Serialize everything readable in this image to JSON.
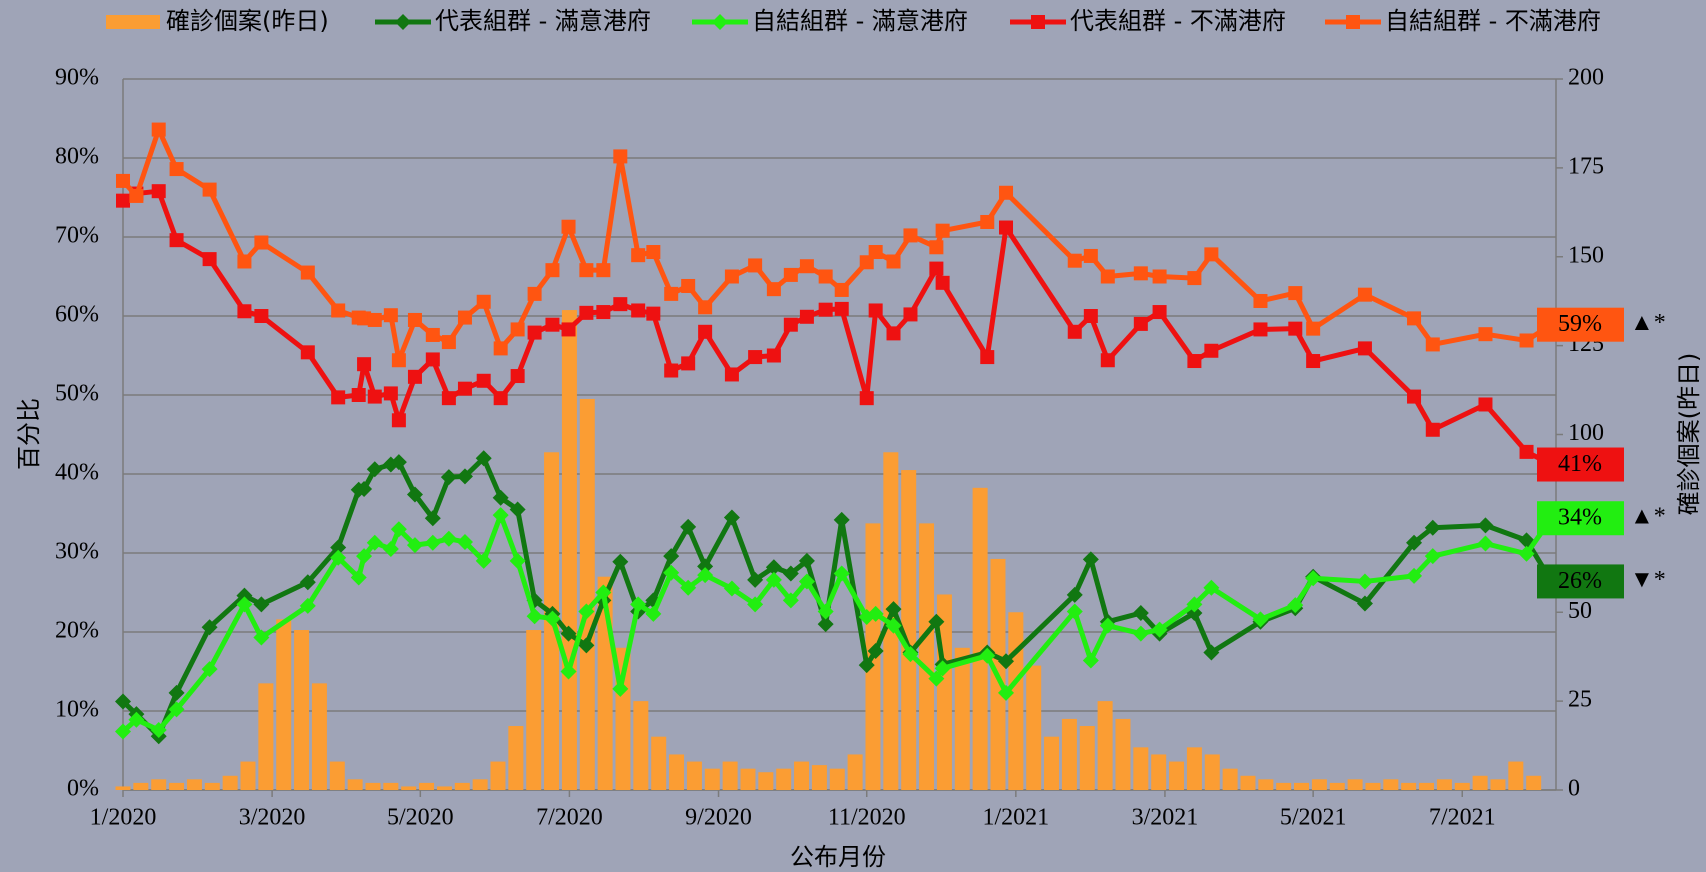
{
  "chart_data": {
    "type": "combo",
    "x_label": "公布月份",
    "y_label": "百分比",
    "y2_label": "確診個案(昨日)",
    "legend": "top",
    "grid": true,
    "xlim": [
      2020,
      2021.605
    ],
    "xticks": [
      {
        "value": 2020,
        "label": "1/2020"
      },
      {
        "value": 2020.167,
        "label": "3/2020"
      },
      {
        "value": 2020.333,
        "label": "5/2020"
      },
      {
        "value": 2020.5,
        "label": "7/2020"
      },
      {
        "value": 2020.667,
        "label": "9/2020"
      },
      {
        "value": 2020.833,
        "label": "11/2020"
      },
      {
        "value": 2021,
        "label": "1/2021"
      },
      {
        "value": 2021.167,
        "label": "3/2021"
      },
      {
        "value": 2021.333,
        "label": "5/2021"
      },
      {
        "value": 2021.5,
        "label": "7/2021"
      }
    ],
    "ylim": [
      0,
      90
    ],
    "yticks": [
      {
        "value": 0,
        "label": "0%"
      },
      {
        "value": 10,
        "label": "10%"
      },
      {
        "value": 20,
        "label": "20%"
      },
      {
        "value": 30,
        "label": "30%"
      },
      {
        "value": 40,
        "label": "40%"
      },
      {
        "value": 50,
        "label": "50%"
      },
      {
        "value": 60,
        "label": "60%"
      },
      {
        "value": 70,
        "label": "70%"
      },
      {
        "value": 80,
        "label": "80%"
      },
      {
        "value": 90,
        "label": "90%"
      }
    ],
    "y2lim": [
      0,
      200
    ],
    "y2ticks": [
      0,
      25,
      50,
      75,
      100,
      125,
      150,
      175,
      200
    ],
    "x": [
      2020.0,
      2020.015,
      2020.04,
      2020.06,
      2020.097,
      2020.136,
      2020.155,
      2020.207,
      2020.241,
      2020.264,
      2020.27,
      2020.282,
      2020.3,
      2020.309,
      2020.327,
      2020.347,
      2020.365,
      2020.383,
      2020.404,
      2020.423,
      2020.442,
      2020.461,
      2020.481,
      2020.499,
      2020.519,
      2020.538,
      2020.557,
      2020.577,
      2020.594,
      2020.614,
      2020.633,
      2020.652,
      2020.682,
      2020.708,
      2020.729,
      2020.748,
      2020.766,
      2020.787,
      2020.805,
      2020.833,
      2020.843,
      2020.863,
      2020.882,
      2020.911,
      2020.918,
      2020.968,
      2020.989,
      2021.066,
      2021.084,
      2021.103,
      2021.14,
      2021.161,
      2021.2,
      2021.219,
      2021.274,
      2021.313,
      2021.333,
      2021.391,
      2021.446,
      2021.467,
      2021.526,
      2021.572,
      2021.6
    ],
    "series": [
      {
        "name": "確診個案(昨日)",
        "type": "bar",
        "axis": "y2",
        "color": "#fb9d33",
        "x": [
          2020.0,
          2020.02,
          2020.04,
          2020.06,
          2020.08,
          2020.1,
          2020.12,
          2020.14,
          2020.16,
          2020.18,
          2020.2,
          2020.22,
          2020.24,
          2020.26,
          2020.28,
          2020.3,
          2020.32,
          2020.34,
          2020.36,
          2020.38,
          2020.4,
          2020.42,
          2020.44,
          2020.46,
          2020.48,
          2020.5,
          2020.52,
          2020.54,
          2020.56,
          2020.58,
          2020.6,
          2020.62,
          2020.64,
          2020.66,
          2020.68,
          2020.7,
          2020.72,
          2020.74,
          2020.76,
          2020.78,
          2020.8,
          2020.82,
          2020.84,
          2020.86,
          2020.88,
          2020.9,
          2020.92,
          2020.94,
          2020.96,
          2020.98,
          2021.0,
          2021.02,
          2021.04,
          2021.06,
          2021.08,
          2021.1,
          2021.12,
          2021.14,
          2021.16,
          2021.18,
          2021.2,
          2021.22,
          2021.24,
          2021.26,
          2021.28,
          2021.3,
          2021.32,
          2021.34,
          2021.36,
          2021.38,
          2021.4,
          2021.42,
          2021.44,
          2021.46,
          2021.48,
          2021.5,
          2021.52,
          2021.54,
          2021.56,
          2021.58
        ],
        "values": [
          1,
          2,
          3,
          2,
          3,
          2,
          4,
          8,
          30,
          48,
          45,
          30,
          8,
          3,
          2,
          2,
          1,
          2,
          1,
          2,
          3,
          8,
          18,
          45,
          95,
          135,
          110,
          60,
          40,
          25,
          15,
          10,
          8,
          6,
          8,
          6,
          5,
          6,
          8,
          7,
          6,
          10,
          75,
          95,
          90,
          75,
          55,
          40,
          85,
          65,
          50,
          35,
          15,
          20,
          18,
          25,
          20,
          12,
          10,
          8,
          12,
          10,
          6,
          4,
          3,
          2,
          2,
          3,
          2,
          3,
          2,
          3,
          2,
          2,
          3,
          2,
          4,
          3,
          8,
          4
        ]
      },
      {
        "name": "代表組群 - 滿意港府",
        "type": "line",
        "marker": "diamond",
        "color": "#117711",
        "last_label": "26%",
        "change_marker": "▼*",
        "change_color": "#ee1111",
        "values": [
          11.2,
          9.6,
          6.8,
          12.3,
          20.6,
          24.6,
          23.5,
          26.3,
          30.7,
          38.0,
          38.1,
          40.6,
          41.2,
          41.5,
          37.4,
          34.4,
          39.6,
          39.7,
          42.0,
          37.0,
          35.5,
          24.0,
          22.3,
          19.8,
          18.3,
          24.0,
          28.9,
          22.6,
          24.0,
          29.6,
          33.3,
          28.3,
          34.5,
          26.6,
          28.2,
          27.4,
          29.0,
          21.0,
          34.2,
          15.8,
          17.6,
          22.9,
          17.4,
          21.3,
          15.9,
          17.4,
          16.3,
          24.7,
          29.2,
          21.3,
          22.4,
          19.8,
          22.4,
          17.4,
          21.3,
          23.0,
          27.0,
          23.6,
          31.3,
          33.2,
          33.5,
          31.6,
          26.4
        ]
      },
      {
        "name": "自結組群 - 滿意港府",
        "type": "line",
        "marker": "diamond",
        "color": "#22ee11",
        "last_label": "34%",
        "change_marker": "▲*",
        "change_color": "#11aa44",
        "values": [
          7.4,
          8.9,
          7.6,
          10.2,
          15.3,
          23.5,
          19.3,
          23.3,
          29.4,
          26.9,
          29.6,
          31.3,
          30.5,
          33.0,
          31.0,
          31.3,
          31.8,
          31.4,
          29.0,
          34.8,
          29.0,
          22.0,
          21.7,
          15.0,
          22.6,
          25.0,
          12.8,
          23.5,
          22.3,
          27.5,
          25.6,
          27.2,
          25.5,
          23.5,
          26.6,
          24.0,
          26.4,
          22.6,
          27.4,
          21.9,
          22.3,
          20.8,
          17.2,
          14.1,
          15.4,
          17.0,
          12.3,
          22.6,
          16.4,
          20.8,
          19.8,
          20.3,
          23.5,
          25.6,
          21.6,
          23.4,
          26.8,
          26.4,
          27.1,
          29.6,
          31.2,
          29.9,
          34.4
        ]
      },
      {
        "name": "代表組群 - 不滿港府",
        "type": "line",
        "marker": "square",
        "color": "#ee1111",
        "last_label": "41%",
        "values": [
          74.6,
          75.5,
          75.8,
          69.6,
          67.2,
          60.6,
          60.0,
          55.4,
          49.7,
          50.0,
          53.9,
          49.8,
          50.2,
          46.8,
          52.3,
          54.5,
          49.6,
          50.8,
          51.8,
          49.6,
          52.4,
          57.9,
          58.9,
          58.3,
          60.4,
          60.5,
          61.5,
          60.7,
          60.3,
          53.1,
          54.0,
          58.0,
          52.6,
          54.8,
          55.0,
          58.9,
          59.9,
          60.8,
          60.9,
          49.6,
          60.7,
          57.8,
          60.2,
          66.0,
          64.2,
          54.8,
          71.2,
          58.0,
          60.0,
          54.4,
          59.0,
          60.5,
          54.3,
          55.6,
          58.3,
          58.4,
          54.3,
          55.9,
          49.8,
          45.6,
          48.8,
          42.8,
          41.2
        ]
      },
      {
        "name": "自結組群 - 不滿港府",
        "type": "line",
        "marker": "square",
        "color": "#ff5511",
        "last_label": "59%",
        "change_marker": "▲*",
        "change_color": "#11aa44",
        "values": [
          77.1,
          75.2,
          83.6,
          78.6,
          76.0,
          66.9,
          69.3,
          65.5,
          60.7,
          59.8,
          59.7,
          59.5,
          60.1,
          54.4,
          59.5,
          57.6,
          56.7,
          59.8,
          61.8,
          55.9,
          58.3,
          62.8,
          65.8,
          71.3,
          65.8,
          65.8,
          80.2,
          67.7,
          68.1,
          62.8,
          63.8,
          61.1,
          65.0,
          66.4,
          63.4,
          65.2,
          66.3,
          65.0,
          63.3,
          66.8,
          68.1,
          66.9,
          70.2,
          68.7,
          70.8,
          71.9,
          75.6,
          67.0,
          67.6,
          65.0,
          65.4,
          65.0,
          64.8,
          67.8,
          61.9,
          62.9,
          58.4,
          62.7,
          59.7,
          56.4,
          57.7,
          56.9,
          58.9
        ]
      }
    ]
  }
}
